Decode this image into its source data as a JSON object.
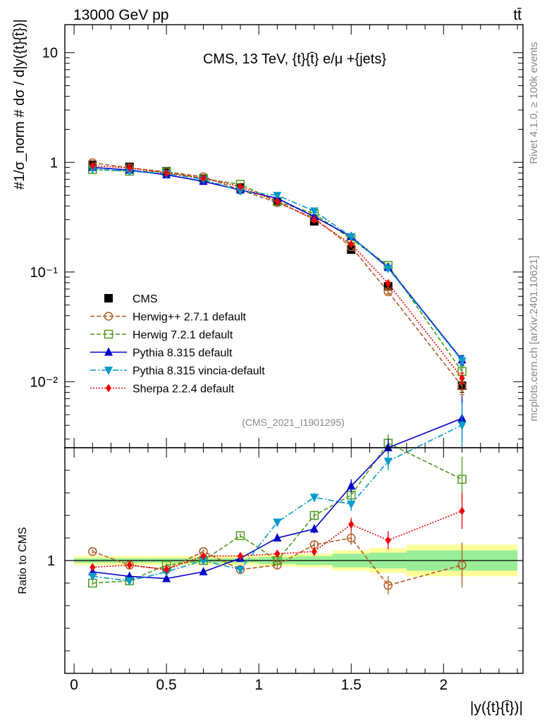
{
  "header": {
    "left_label": "13000 GeV pp",
    "right_label": "tt̄"
  },
  "chart_data": [
    {
      "type": "line",
      "panel": "main",
      "title": "CMS, 13 TeV, {t}{t̄} e/μ +{jets}",
      "ylabel": "#1/σ_norm # dσ / d|y({t}{t̄})|",
      "yscale": "log",
      "ylim": [
        0.0025,
        18
      ],
      "xlim": [
        -0.05,
        2.43
      ],
      "y_ticks": [
        {
          "value": 10,
          "label": "10"
        },
        {
          "value": 1,
          "label": "1"
        },
        {
          "value": 0.1,
          "label": "10⁻¹"
        },
        {
          "value": 0.01,
          "label": "10⁻²"
        }
      ],
      "watermark": "(CMS_2021_I1901295)",
      "legend_position": "lower-left",
      "x": [
        0.1,
        0.3,
        0.5,
        0.7,
        0.9,
        1.1,
        1.3,
        1.5,
        1.7,
        2.1
      ],
      "bin_edges": [
        0.0,
        0.2,
        0.4,
        0.6,
        0.8,
        1.0,
        1.2,
        1.4,
        1.6,
        1.8,
        2.4
      ],
      "series": [
        {
          "name": "CMS",
          "style": "data",
          "color": "#000000",
          "values": [
            0.95,
            0.91,
            0.83,
            0.71,
            0.59,
            0.44,
            0.29,
            0.16,
            0.074,
            0.0092
          ],
          "errors": [
            0.03,
            0.03,
            0.02,
            0.02,
            0.02,
            0.015,
            0.01,
            0.007,
            0.004,
            0.0012
          ]
        },
        {
          "name": "Herwig++ 2.7.1 default",
          "color": "#b35a1f",
          "marker": "open-circle",
          "dash": "6,3",
          "values": [
            0.99,
            0.89,
            0.82,
            0.74,
            0.56,
            0.43,
            0.31,
            0.17,
            0.066,
            0.0091
          ],
          "errors": [
            0,
            0,
            0,
            0,
            0,
            0,
            0,
            0,
            0.003,
            0.0015
          ]
        },
        {
          "name": "Herwig 7.2.1 default",
          "color": "#4d9a1d",
          "marker": "open-square",
          "dash": "6,3",
          "values": [
            0.86,
            0.83,
            0.82,
            0.71,
            0.63,
            0.44,
            0.34,
            0.2,
            0.115,
            0.0124
          ],
          "errors": [
            0,
            0,
            0,
            0,
            0,
            0,
            0,
            0,
            0.004,
            0.0015
          ]
        },
        {
          "name": "Pythia 8.315 default",
          "color": "#0000cc",
          "marker": "triangle-up",
          "dash": "",
          "values": [
            0.9,
            0.85,
            0.77,
            0.67,
            0.56,
            0.47,
            0.32,
            0.21,
            0.11,
            0.0158
          ],
          "errors": [
            0,
            0,
            0,
            0,
            0,
            0,
            0,
            0,
            0.004,
            0.0015
          ]
        },
        {
          "name": "Pythia 8.315 vincia-default",
          "color": "#0099cc",
          "marker": "triangle-down",
          "dash": "8,3,2,3",
          "values": [
            0.87,
            0.83,
            0.79,
            0.7,
            0.55,
            0.5,
            0.36,
            0.21,
            0.108,
            0.0155
          ],
          "errors": [
            0,
            0,
            0,
            0,
            0,
            0,
            0,
            0,
            0.004,
            0.0015
          ]
        },
        {
          "name": "Sherpa 2.2.4 default",
          "color": "#ee0000",
          "marker": "diamond",
          "dash": "2,2",
          "values": [
            0.93,
            0.89,
            0.8,
            0.72,
            0.6,
            0.44,
            0.3,
            0.18,
            0.079,
            0.0108
          ],
          "errors": [
            0,
            0,
            0,
            0,
            0,
            0,
            0,
            0,
            0.003,
            0.0012
          ]
        }
      ]
    },
    {
      "type": "line",
      "panel": "ratio",
      "ylabel": "Ratio to CMS",
      "xlabel": "|y({t}{t̄})|",
      "ylim": [
        0.5,
        1.5
      ],
      "y_ticks": [
        {
          "value": 1,
          "label": "1"
        }
      ],
      "x_ticks": [
        {
          "value": 0,
          "label": "0"
        },
        {
          "value": 0.5,
          "label": "0.5"
        },
        {
          "value": 1,
          "label": "1"
        },
        {
          "value": 1.5,
          "label": "1.5"
        },
        {
          "value": 2,
          "label": "2"
        }
      ],
      "band_stat": [
        0.01,
        0.01,
        0.01,
        0.01,
        0.01,
        0.015,
        0.02,
        0.03,
        0.035,
        0.045
      ],
      "band_total": [
        0.02,
        0.02,
        0.02,
        0.02,
        0.02,
        0.025,
        0.03,
        0.045,
        0.055,
        0.07
      ],
      "x": [
        0.1,
        0.3,
        0.5,
        0.7,
        0.9,
        1.1,
        1.3,
        1.5,
        1.7,
        2.1
      ],
      "series": [
        {
          "name": "Herwig++ 2.7.1 default",
          "values": [
            1.04,
            0.98,
            0.96,
            1.04,
            0.96,
            0.98,
            1.07,
            1.1,
            0.89,
            0.98
          ],
          "errors": [
            0.01,
            0.01,
            0.01,
            0.01,
            0.01,
            0.015,
            0.02,
            0.03,
            0.04,
            0.1
          ]
        },
        {
          "name": "Herwig 7.2.1 default",
          "values": [
            0.9,
            0.91,
            0.98,
            1.0,
            1.11,
            1.0,
            1.2,
            1.29,
            1.52,
            1.36
          ],
          "errors": [
            0.01,
            0.01,
            0.01,
            0.01,
            0.01,
            0.015,
            0.02,
            0.03,
            0.04,
            0.1
          ]
        },
        {
          "name": "Pythia 8.315 default",
          "values": [
            0.95,
            0.93,
            0.92,
            0.95,
            1.01,
            1.1,
            1.14,
            1.33,
            1.5,
            1.63
          ],
          "errors": [
            0.01,
            0.01,
            0.01,
            0.01,
            0.01,
            0.015,
            0.02,
            0.03,
            0.04,
            0.1
          ]
        },
        {
          "name": "Pythia 8.315 vincia-default",
          "values": [
            0.93,
            0.91,
            0.95,
            1.0,
            0.96,
            1.17,
            1.28,
            1.25,
            1.44,
            1.6
          ],
          "errors": [
            0.01,
            0.01,
            0.01,
            0.01,
            0.01,
            0.015,
            0.02,
            0.03,
            0.04,
            0.1
          ]
        },
        {
          "name": "Sherpa 2.2.4 default",
          "values": [
            0.97,
            0.98,
            0.96,
            1.02,
            1.02,
            1.03,
            1.04,
            1.16,
            1.09,
            1.22
          ],
          "errors": [
            0.01,
            0.01,
            0.01,
            0.01,
            0.01,
            0.015,
            0.02,
            0.03,
            0.04,
            0.08
          ]
        }
      ]
    }
  ],
  "side_labels": {
    "rivet": "Rivet 4.1.0, ≥ 100k events",
    "site": "mcplots.cern.ch [arXiv:2401.10621]"
  }
}
